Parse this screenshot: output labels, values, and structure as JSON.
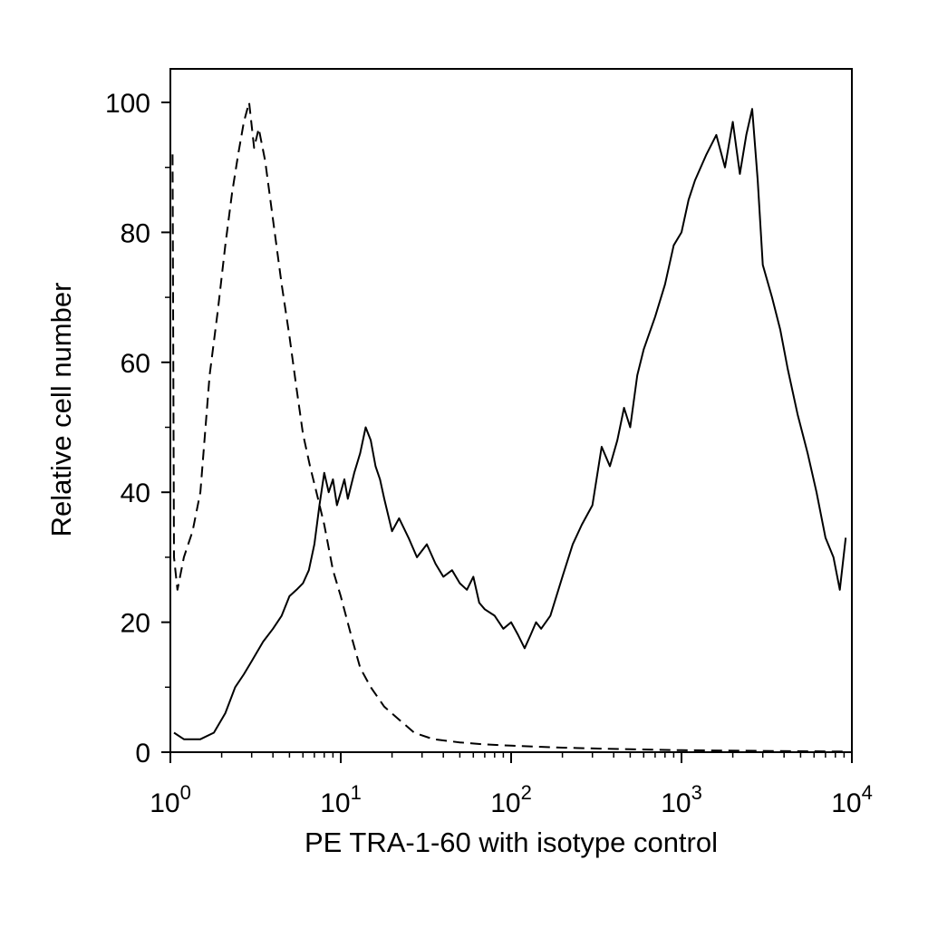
{
  "chart_data": {
    "type": "line",
    "title": "",
    "xlabel": "PE TRA-1-60 with isotype control",
    "ylabel": "Relative cell number",
    "x_scale": "log",
    "xlim": [
      1,
      10000
    ],
    "ylim": [
      0,
      105
    ],
    "grid": false,
    "x_ticks": [
      {
        "value": 1,
        "base": "10",
        "exp": "0"
      },
      {
        "value": 10,
        "base": "10",
        "exp": "1"
      },
      {
        "value": 100,
        "base": "10",
        "exp": "2"
      },
      {
        "value": 1000,
        "base": "10",
        "exp": "3"
      },
      {
        "value": 10000,
        "base": "10",
        "exp": "4"
      }
    ],
    "y_ticks": [
      {
        "value": 0,
        "label": "0"
      },
      {
        "value": 20,
        "label": "20"
      },
      {
        "value": 40,
        "label": "40"
      },
      {
        "value": 60,
        "label": "60"
      },
      {
        "value": 80,
        "label": "80"
      },
      {
        "value": 100,
        "label": "100"
      }
    ],
    "series": [
      {
        "style": "dashed",
        "x": [
          1.03,
          1.05,
          1.1,
          1.2,
          1.35,
          1.5,
          1.7,
          1.9,
          2.1,
          2.3,
          2.5,
          2.7,
          2.9,
          3.1,
          3.3,
          3.6,
          4.0,
          4.5,
          5.0,
          5.5,
          6.0,
          6.6,
          7.2,
          8.0,
          9.0,
          10.0,
          11.5,
          13.0,
          15.0,
          18.0,
          22.0,
          27.0,
          35.0,
          50.0,
          70.0,
          100.0,
          200.0,
          400.0,
          1000.0,
          3000.0,
          9000.0
        ],
        "y": [
          92,
          30,
          25,
          30,
          34,
          40,
          58,
          68,
          78,
          86,
          92,
          97,
          100,
          93,
          96,
          91,
          82,
          72,
          64,
          56,
          49,
          44,
          40,
          35,
          28,
          24,
          18,
          13,
          10,
          7,
          5,
          3,
          2,
          1.5,
          1.2,
          1,
          0.7,
          0.5,
          0.3,
          0.2,
          0.1
        ]
      },
      {
        "style": "solid",
        "x": [
          1.05,
          1.2,
          1.5,
          1.8,
          2.1,
          2.4,
          2.7,
          3.0,
          3.5,
          4.0,
          4.5,
          5.0,
          5.5,
          6.0,
          6.5,
          7.0,
          7.5,
          8.0,
          8.5,
          9.0,
          9.5,
          10.0,
          10.5,
          11.0,
          12.0,
          13.0,
          14.0,
          15.0,
          16.0,
          17.0,
          18.0,
          20.0,
          22.0,
          25.0,
          28.0,
          32.0,
          36.0,
          40.0,
          45.0,
          50.0,
          55.0,
          60.0,
          65.0,
          70.0,
          80.0,
          90.0,
          100.0,
          110.0,
          120.0,
          130.0,
          140.0,
          150.0,
          170.0,
          200.0,
          230.0,
          260.0,
          300.0,
          340.0,
          380.0,
          420.0,
          460.0,
          500.0,
          550.0,
          600.0,
          700.0,
          800.0,
          900.0,
          1000.0,
          1100.0,
          1200.0,
          1400.0,
          1600.0,
          1800.0,
          2000.0,
          2200.0,
          2400.0,
          2600.0,
          2800.0,
          3000.0,
          3400.0,
          3800.0,
          4200.0,
          4800.0,
          5500.0,
          6200.0,
          7000.0,
          7800.0,
          8500.0,
          9200.0
        ],
        "y": [
          3,
          2,
          2,
          3,
          6,
          10,
          12,
          14,
          17,
          19,
          21,
          24,
          25,
          26,
          28,
          32,
          38,
          43,
          40,
          42,
          38,
          40,
          42,
          39,
          43,
          46,
          50,
          48,
          44,
          42,
          39,
          34,
          36,
          33,
          30,
          32,
          29,
          27,
          28,
          26,
          25,
          27,
          23,
          22,
          21,
          19,
          20,
          18,
          16,
          18,
          20,
          19,
          21,
          27,
          32,
          35,
          38,
          47,
          44,
          48,
          53,
          50,
          58,
          62,
          67,
          72,
          78,
          80,
          85,
          88,
          92,
          95,
          90,
          97,
          89,
          95,
          99,
          88,
          75,
          70,
          65,
          59,
          52,
          46,
          40,
          33,
          30,
          25,
          33
        ]
      }
    ]
  }
}
